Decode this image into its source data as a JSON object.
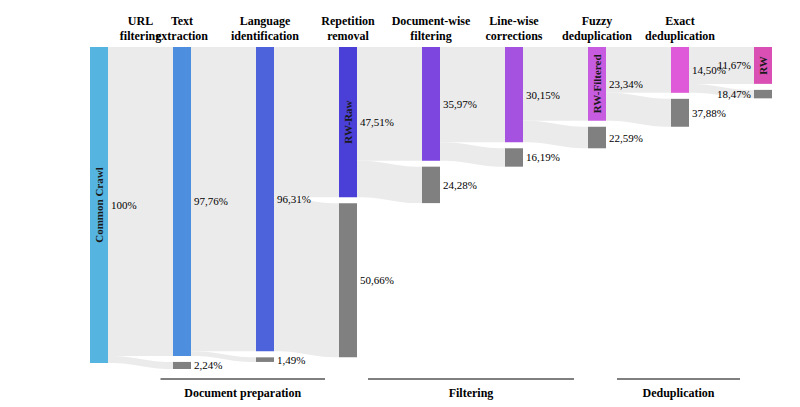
{
  "chart_data": {
    "type": "sankey",
    "stages": [
      "URL filtering",
      "Text extraction",
      "Language identification",
      "Repetition removal",
      "Document-wise filtering",
      "Line-wise corrections",
      "Fuzzy deduplication",
      "Exact deduplication"
    ],
    "kept": {
      "labels": [
        "Common Crawl",
        null,
        null,
        "RW-Raw",
        null,
        null,
        "RW-Filtered",
        null,
        "RW"
      ],
      "values": [
        100,
        97.76,
        96.31,
        47.51,
        35.97,
        30.15,
        23.34,
        14.5,
        11.67
      ],
      "value_labels": [
        "100%",
        "97,76%",
        "96,31%",
        "47,51%",
        "35,97%",
        "30,15%",
        "23,34%",
        "14,50%",
        "11,67%"
      ],
      "colors": [
        "#56b4e0",
        "#4d8fde",
        "#4c63dc",
        "#4a3fd6",
        "#7c46df",
        "#a552e0",
        "#c75ce0",
        "#df5ad8",
        "#d94fb4"
      ]
    },
    "removed": {
      "values": [
        2.24,
        1.49,
        50.66,
        24.28,
        16.19,
        22.59,
        37.88,
        18.47
      ],
      "value_labels": [
        "2,24%",
        "1,49%",
        "50,66%",
        "24,28%",
        "16,19%",
        "22,59%",
        "37,88%",
        "18,47%"
      ],
      "color": "#808080"
    },
    "groups": [
      {
        "label": "Document preparation",
        "stages": [
          "URL filtering",
          "Text extraction",
          "Language identification"
        ]
      },
      {
        "label": "Filtering",
        "stages": [
          "Repetition removal",
          "Document-wise filtering",
          "Line-wise corrections"
        ]
      },
      {
        "label": "Deduplication",
        "stages": [
          "Fuzzy deduplication",
          "Exact deduplication"
        ]
      }
    ]
  }
}
